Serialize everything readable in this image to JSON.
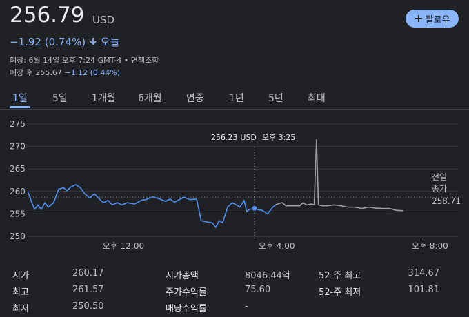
{
  "header": {
    "price": "256.79",
    "currency": "USD",
    "change": "−1.92 (0.74%)",
    "period": "오늘",
    "close_info": "폐장: 6월 14일 오후 7:24 GMT-4 • 면책조항",
    "after_label": "폐장 후",
    "after_price": "255.67",
    "after_change": "−1.12 (0.44%)",
    "follow": "팔로우"
  },
  "tabs": [
    "1일",
    "5일",
    "1개월",
    "6개월",
    "연중",
    "1년",
    "5년",
    "최대"
  ],
  "active_tab": 0,
  "chart_data": {
    "type": "line",
    "series": [
      {
        "color": "#4d8ff5",
        "x": [
          9.5,
          9.59,
          9.68,
          9.77,
          9.86,
          9.95,
          10.04,
          10.18,
          10.31,
          10.44,
          10.53,
          10.63,
          10.76,
          10.88,
          10.99,
          11.12,
          11.24,
          11.35,
          11.48,
          11.6,
          11.71,
          11.84,
          11.96,
          12.1,
          12.29,
          12.47,
          12.59,
          12.77,
          12.95,
          13.1,
          13.22,
          13.33,
          13.46,
          13.58,
          13.73,
          13.91,
          14.03,
          14.18,
          14.32,
          14.41,
          14.5,
          14.59,
          14.72,
          14.84,
          14.95,
          15.04,
          15.15,
          15.22,
          15.29,
          15.42,
          15.47,
          15.62,
          15.76,
          15.9,
          15.97
        ],
        "values": [
          260,
          258,
          256,
          257,
          256,
          257.5,
          256.5,
          257.5,
          260.5,
          260.8,
          260.2,
          261,
          261.5,
          260.8,
          259.5,
          258.5,
          259.5,
          258.5,
          257.5,
          258,
          257,
          257.5,
          257,
          257.5,
          257.2,
          258,
          258.2,
          258.8,
          258.3,
          257.8,
          258.3,
          257.6,
          258.2,
          258.7,
          258.2,
          258.3,
          253.5,
          253.2,
          253,
          252,
          253.5,
          253,
          256.5,
          257.5,
          257,
          256.5,
          258,
          255.5,
          256,
          256.23,
          256,
          255.8,
          255,
          256.5,
          257
        ]
      },
      {
        "color": "#9aa0a6",
        "x": [
          15.97,
          16.06,
          16.15,
          16.24,
          16.42,
          16.6,
          16.69,
          16.78,
          16.91,
          16.98,
          17.04,
          17.09,
          17.2,
          17.32,
          17.5,
          17.68,
          17.86,
          18.04,
          18.22,
          18.4,
          18.58,
          18.76,
          18.94,
          19.12,
          19.3
        ],
        "values": [
          257,
          257.3,
          257.5,
          256.8,
          256.8,
          256.8,
          257.5,
          257,
          257.2,
          257,
          271.5,
          257,
          256.8,
          256.8,
          257,
          256.8,
          256.5,
          256.5,
          256.2,
          256.5,
          256.3,
          256.2,
          256.2,
          255.8,
          255.7
        ]
      }
    ],
    "xlim": [
      9.5,
      20.75
    ],
    "xticks": [
      {
        "value": 12,
        "label": "오후 12:00"
      },
      {
        "value": 16,
        "label": "오후 4:00"
      },
      {
        "value": 20,
        "label": "오후 8:00"
      }
    ],
    "ylim": [
      250,
      275
    ],
    "yticks": [
      250,
      255,
      260,
      265,
      270,
      275
    ],
    "grid": true,
    "prev_close": {
      "label": [
        "전일",
        "종가"
      ],
      "value": 258.71
    },
    "tooltip": {
      "x": 15.42,
      "value": 256.23,
      "currency": "USD",
      "time": "오후 3:25"
    }
  },
  "stats": [
    [
      {
        "label": "시가",
        "value": "260.17"
      },
      {
        "label": "최고",
        "value": "261.57"
      },
      {
        "label": "최저",
        "value": "250.50"
      }
    ],
    [
      {
        "label": "시가총액",
        "value": "8046.44억"
      },
      {
        "label": "주가수익률",
        "value": "75.60"
      },
      {
        "label": "배당수익률",
        "value": "-"
      }
    ],
    [
      {
        "label": "52-주 최고",
        "value": "314.67"
      },
      {
        "label": "52-주 최저",
        "value": "101.81"
      }
    ]
  ]
}
